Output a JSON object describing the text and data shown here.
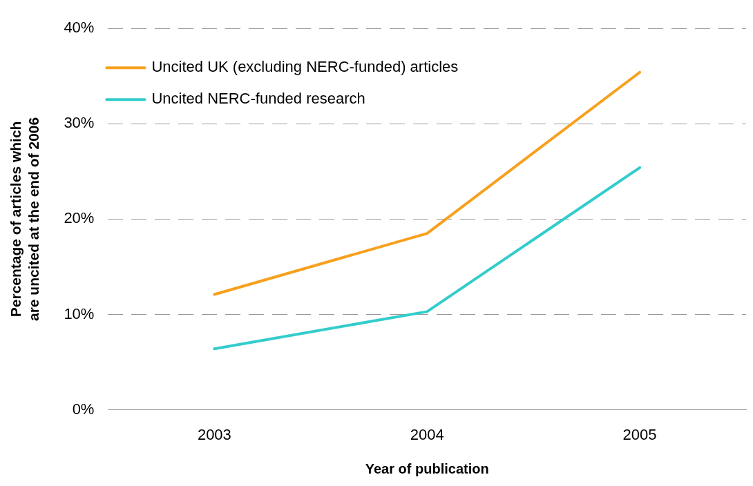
{
  "chart_data": {
    "type": "line",
    "xlabel": "Year of publication",
    "ylabel": "Percentage of articles which are uncited at the end of 2006",
    "categories": [
      "2003",
      "2004",
      "2005"
    ],
    "series": [
      {
        "name": "Uncited UK (excluding NERC-funded) articles",
        "color": "#f7a01e",
        "values": [
          12.1,
          18.5,
          35.4
        ]
      },
      {
        "name": "Uncited NERC-funded research",
        "color": "#33cccc",
        "values": [
          6.4,
          10.3,
          25.4
        ]
      }
    ],
    "ylim": [
      0,
      40
    ],
    "yticks": [
      {
        "value": 0,
        "label": "0%"
      },
      {
        "value": 10,
        "label": "10%"
      },
      {
        "value": 20,
        "label": "20%"
      },
      {
        "value": 30,
        "label": "30%"
      },
      {
        "value": 40,
        "label": "40%"
      }
    ],
    "grid": "y",
    "legend": "top left",
    "marker": "none",
    "line_style": "solid"
  }
}
